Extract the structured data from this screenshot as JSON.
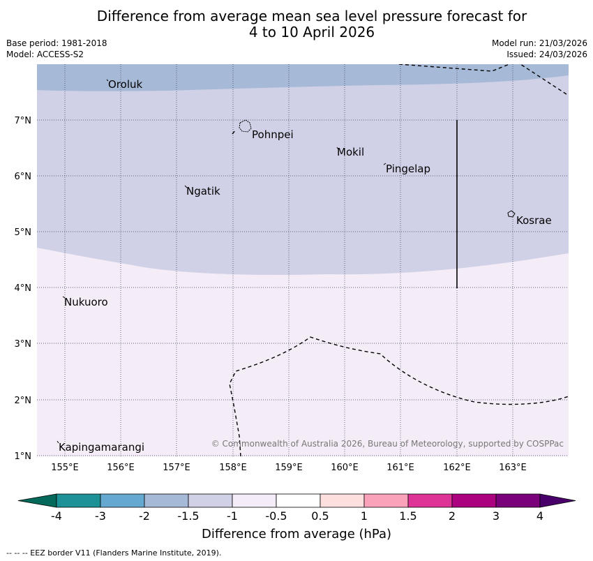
{
  "title": {
    "line1": "Difference from average mean sea level pressure forecast for",
    "line2": "4 to 10 April 2026"
  },
  "meta": {
    "base_period": "Base period: 1981-2018",
    "model": "Model: ACCESS-S2",
    "model_run": "Model run: 21/03/2026",
    "issued": "Issued: 24/03/2026"
  },
  "map": {
    "lat_labels": [
      "7°N",
      "6°N",
      "5°N",
      "4°N",
      "3°N",
      "2°N",
      "1°N"
    ],
    "lon_labels": [
      "155°E",
      "156°E",
      "157°E",
      "158°E",
      "159°E",
      "160°E",
      "161°E",
      "162°E",
      "163°E"
    ],
    "places": [
      {
        "name": "Oroluk"
      },
      {
        "name": "Pohnpei"
      },
      {
        "name": "Mokil"
      },
      {
        "name": "Pingelap"
      },
      {
        "name": "Ngatik"
      },
      {
        "name": "Kosrae"
      },
      {
        "name": "Nukuoro"
      },
      {
        "name": "Kapingamarangi"
      }
    ],
    "copyright": "© Commonwealth of Australia 2026, Bureau of Meteorology, supported by COSPPac",
    "colors": {
      "band_m2_to_m1_5": "#a6bad8",
      "band_m1_5_to_m1": "#d0d1e6",
      "band_m1_to_m0_5": "#f4ecf6",
      "eez_line": "#000000",
      "grid": "#333355"
    }
  },
  "colorbar": {
    "tick_labels": [
      "-4",
      "-3",
      "-2",
      "-1.5",
      "-1",
      "-0.5",
      "0.5",
      "1",
      "1.5",
      "2",
      "3",
      "4"
    ],
    "colors": [
      "#02695b",
      "#1c9296",
      "#65a9d1",
      "#a6bad8",
      "#d0d1e6",
      "#f4ecf6",
      "#ffffff",
      "#fde0dd",
      "#f9a2ba",
      "#de3497",
      "#ad0280",
      "#7a017a",
      "#49006a"
    ],
    "title": "Difference from average (hPa)"
  },
  "footnote": "--  --  -- EEZ border V11 (Flanders Marine Institute, 2019)."
}
